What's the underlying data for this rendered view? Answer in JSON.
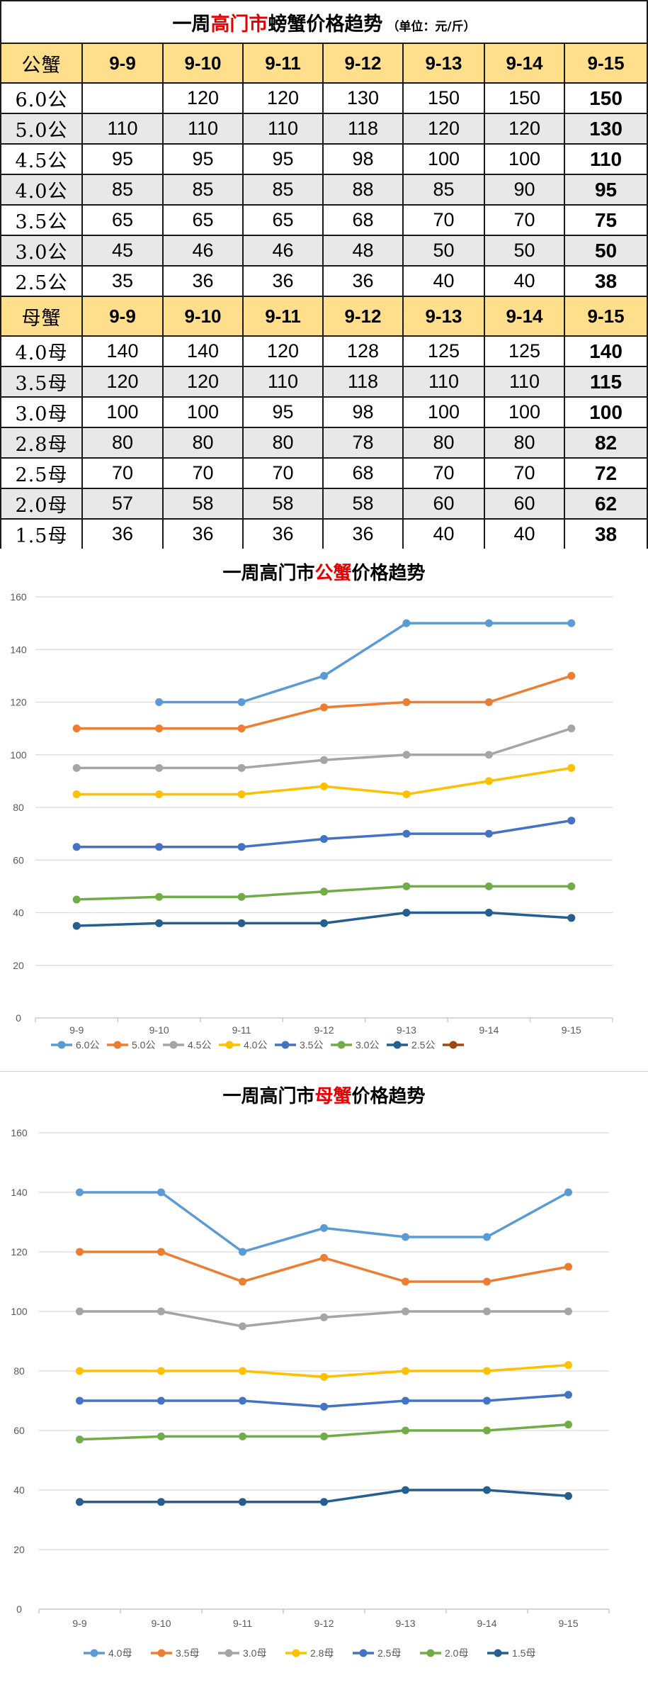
{
  "table": {
    "title_prefix": "一周",
    "title_highlight": "高门市",
    "title_suffix": "螃蟹价格趋势",
    "title_unit": "（单位：元/斤）",
    "male_header": {
      "label": "公蟹",
      "dates": [
        "9-9",
        "9-10",
        "9-11",
        "9-12",
        "9-13",
        "9-14",
        "9-15"
      ]
    },
    "male_rows": [
      {
        "label": "6.0公",
        "values": [
          "",
          "120",
          "120",
          "130",
          "150",
          "150",
          "150"
        ]
      },
      {
        "label": "5.0公",
        "values": [
          "110",
          "110",
          "110",
          "118",
          "120",
          "120",
          "130"
        ]
      },
      {
        "label": "4.5公",
        "values": [
          "95",
          "95",
          "95",
          "98",
          "100",
          "100",
          "110"
        ]
      },
      {
        "label": "4.0公",
        "values": [
          "85",
          "85",
          "85",
          "88",
          "85",
          "90",
          "95"
        ]
      },
      {
        "label": "3.5公",
        "values": [
          "65",
          "65",
          "65",
          "68",
          "70",
          "70",
          "75"
        ]
      },
      {
        "label": "3.0公",
        "values": [
          "45",
          "46",
          "46",
          "48",
          "50",
          "50",
          "50"
        ]
      },
      {
        "label": "2.5公",
        "values": [
          "35",
          "36",
          "36",
          "36",
          "40",
          "40",
          "38"
        ]
      }
    ],
    "female_header": {
      "label": "母蟹",
      "dates": [
        "9-9",
        "9-10",
        "9-11",
        "9-12",
        "9-13",
        "9-14",
        "9-15"
      ]
    },
    "female_rows": [
      {
        "label": "4.0母",
        "values": [
          "140",
          "140",
          "120",
          "128",
          "125",
          "125",
          "140"
        ]
      },
      {
        "label": "3.5母",
        "values": [
          "120",
          "120",
          "110",
          "118",
          "110",
          "110",
          "115"
        ]
      },
      {
        "label": "3.0母",
        "values": [
          "100",
          "100",
          "95",
          "98",
          "100",
          "100",
          "100"
        ]
      },
      {
        "label": "2.8母",
        "values": [
          "80",
          "80",
          "80",
          "78",
          "80",
          "80",
          "82"
        ]
      },
      {
        "label": "2.5母",
        "values": [
          "70",
          "70",
          "70",
          "68",
          "70",
          "70",
          "72"
        ]
      },
      {
        "label": "2.0母",
        "values": [
          "57",
          "58",
          "58",
          "58",
          "60",
          "60",
          "62"
        ]
      },
      {
        "label": "1.5母",
        "values": [
          "36",
          "36",
          "36",
          "36",
          "40",
          "40",
          "38"
        ]
      }
    ]
  },
  "chart_data": [
    {
      "type": "line",
      "title_prefix": "一周高门市",
      "title_highlight": "公蟹",
      "title_suffix": "价格趋势",
      "categories": [
        "9-9",
        "9-10",
        "9-11",
        "9-12",
        "9-13",
        "9-14",
        "9-15"
      ],
      "ylim": [
        0,
        160
      ],
      "yticks": [
        0,
        20,
        40,
        60,
        80,
        100,
        120,
        140,
        160
      ],
      "grid": true,
      "legend_position": "bottom",
      "series": [
        {
          "name": "6.0公",
          "color": "#5b9bd5",
          "values": [
            null,
            120,
            120,
            130,
            150,
            150,
            150
          ]
        },
        {
          "name": "5.0公",
          "color": "#ed7d31",
          "values": [
            110,
            110,
            110,
            118,
            120,
            120,
            130
          ]
        },
        {
          "name": "4.5公",
          "color": "#a5a5a5",
          "values": [
            95,
            95,
            95,
            98,
            100,
            100,
            110
          ]
        },
        {
          "name": "4.0公",
          "color": "#ffc000",
          "values": [
            85,
            85,
            85,
            88,
            85,
            90,
            95
          ]
        },
        {
          "name": "3.5公",
          "color": "#4472c4",
          "values": [
            65,
            65,
            65,
            68,
            70,
            70,
            75
          ]
        },
        {
          "name": "3.0公",
          "color": "#70ad47",
          "values": [
            45,
            46,
            46,
            48,
            50,
            50,
            50
          ]
        },
        {
          "name": "2.5公",
          "color": "#255e91",
          "values": [
            35,
            36,
            36,
            36,
            40,
            40,
            38
          ]
        },
        {
          "name": "",
          "color": "#9e480e",
          "values": [
            null,
            null,
            null,
            null,
            null,
            null,
            null
          ]
        }
      ]
    },
    {
      "type": "line",
      "title_prefix": "一周高门市",
      "title_highlight": "母蟹",
      "title_suffix": "价格趋势",
      "categories": [
        "9-9",
        "9-10",
        "9-11",
        "9-12",
        "9-13",
        "9-14",
        "9-15"
      ],
      "ylim": [
        0,
        160
      ],
      "yticks": [
        0,
        20,
        40,
        60,
        80,
        100,
        120,
        140,
        160
      ],
      "grid": true,
      "legend_position": "bottom",
      "series": [
        {
          "name": "4.0母",
          "color": "#5b9bd5",
          "values": [
            140,
            140,
            120,
            128,
            125,
            125,
            140
          ]
        },
        {
          "name": "3.5母",
          "color": "#ed7d31",
          "values": [
            120,
            120,
            110,
            118,
            110,
            110,
            115
          ]
        },
        {
          "name": "3.0母",
          "color": "#a5a5a5",
          "values": [
            100,
            100,
            95,
            98,
            100,
            100,
            100
          ]
        },
        {
          "name": "2.8母",
          "color": "#ffc000",
          "values": [
            80,
            80,
            80,
            78,
            80,
            80,
            82
          ]
        },
        {
          "name": "2.5母",
          "color": "#4472c4",
          "values": [
            70,
            70,
            70,
            68,
            70,
            70,
            72
          ]
        },
        {
          "name": "2.0母",
          "color": "#70ad47",
          "values": [
            57,
            58,
            58,
            58,
            60,
            60,
            62
          ]
        },
        {
          "name": "1.5母",
          "color": "#255e91",
          "values": [
            36,
            36,
            36,
            36,
            40,
            40,
            38
          ]
        }
      ]
    }
  ]
}
